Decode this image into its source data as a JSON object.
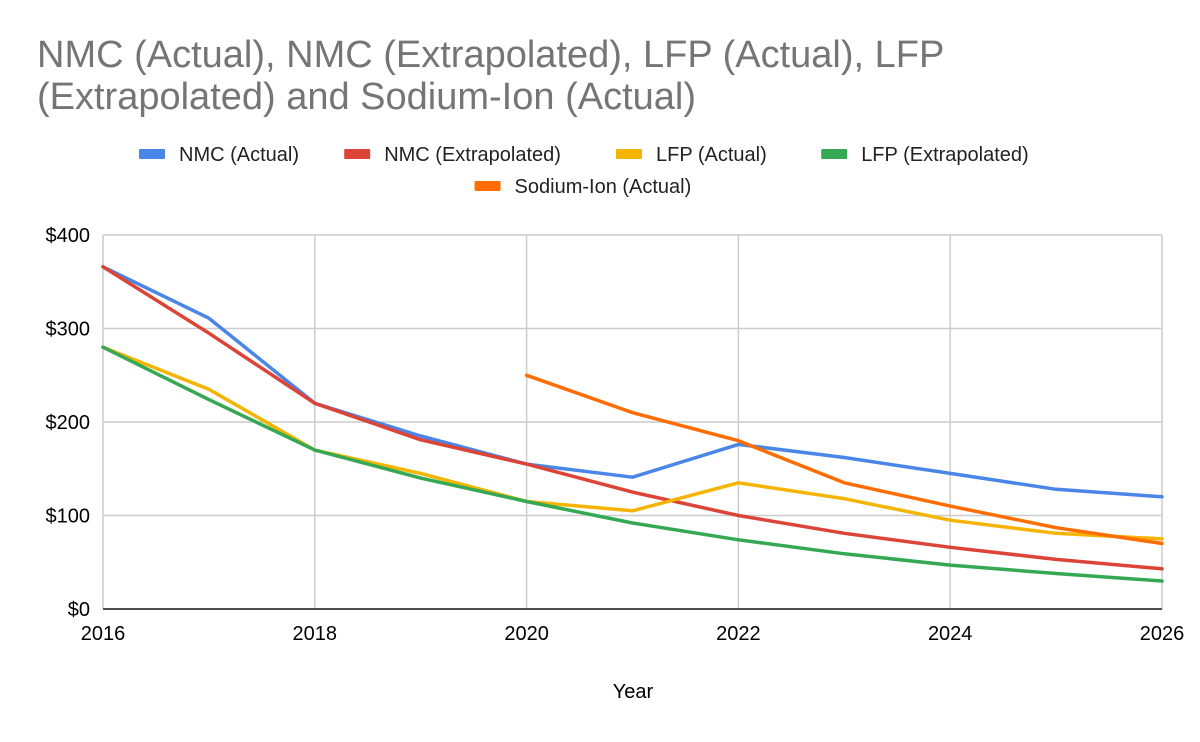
{
  "chart_data": {
    "type": "line",
    "title": "NMC (Actual), NMC (Extrapolated), LFP (Actual), LFP (Extrapolated) and Sodium-Ion (Actual)",
    "xlabel": "Year",
    "ylabel": "",
    "xlim": [
      2016,
      2026
    ],
    "ylim": [
      0,
      400
    ],
    "x_ticks": [
      2016,
      2018,
      2020,
      2022,
      2024,
      2026
    ],
    "x_tick_labels": [
      "2016",
      "2018",
      "2020",
      "2022",
      "2024",
      "2026"
    ],
    "y_ticks": [
      0,
      100,
      200,
      300,
      400
    ],
    "y_tick_labels": [
      "$0",
      "$100",
      "$200",
      "$300",
      "$400"
    ],
    "grid": true,
    "legend_position": "top",
    "series": [
      {
        "name": "NMC (Actual)",
        "color": "#4a86e8",
        "x": [
          2016,
          2017,
          2018,
          2019,
          2020,
          2021,
          2022,
          2023,
          2024,
          2025,
          2026
        ],
        "values": [
          366,
          311,
          220,
          185,
          155,
          141,
          176,
          162,
          145,
          128,
          120
        ]
      },
      {
        "name": "NMC (Extrapolated)",
        "color": "#db4437",
        "x": [
          2016,
          2017,
          2018,
          2019,
          2020,
          2021,
          2022,
          2023,
          2024,
          2025,
          2026
        ],
        "values": [
          366,
          295,
          220,
          181,
          155,
          125,
          100,
          81,
          66,
          53,
          43
        ]
      },
      {
        "name": "LFP (Actual)",
        "color": "#f4b400",
        "x": [
          2016,
          2017,
          2018,
          2019,
          2020,
          2021,
          2022,
          2023,
          2024,
          2025,
          2026
        ],
        "values": [
          280,
          235,
          170,
          145,
          115,
          105,
          135,
          118,
          95,
          81,
          75
        ]
      },
      {
        "name": "LFP (Extrapolated)",
        "color": "#34a853",
        "x": [
          2016,
          2017,
          2018,
          2019,
          2020,
          2021,
          2022,
          2023,
          2024,
          2025,
          2026
        ],
        "values": [
          280,
          224,
          170,
          140,
          115,
          92,
          74,
          59,
          47,
          38,
          30
        ]
      },
      {
        "name": "Sodium-Ion (Actual)",
        "color": "#ff6d01",
        "x": [
          2020,
          2021,
          2022,
          2023,
          2024,
          2025,
          2026
        ],
        "values": [
          250,
          210,
          180,
          135,
          110,
          87,
          70
        ]
      }
    ]
  }
}
